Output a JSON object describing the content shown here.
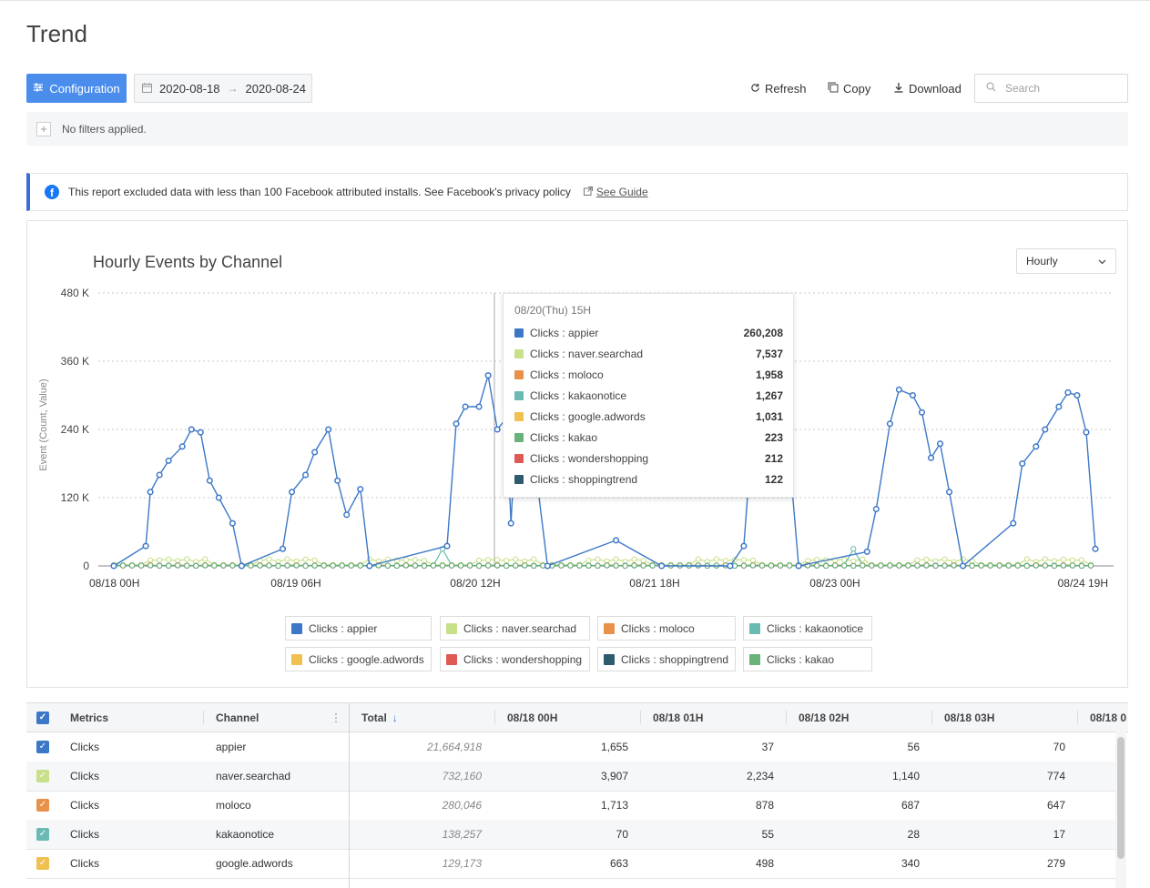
{
  "page": {
    "title": "Trend"
  },
  "toolbar": {
    "config_label": "Configuration",
    "date_start": "2020-08-18",
    "date_end": "2020-08-24",
    "refresh_label": "Refresh",
    "copy_label": "Copy",
    "download_label": "Download",
    "search_placeholder": "Search"
  },
  "filters": {
    "text": "No filters applied."
  },
  "notice": {
    "text": "This report excluded data with less than 100 Facebook attributed installs. See Facebook's privacy policy",
    "link": "See Guide",
    "accent": "#3b6fd8"
  },
  "chart_panel": {
    "title": "Hourly Events by Channel",
    "granularity": "Hourly"
  },
  "chart_data": {
    "type": "line",
    "title": "Hourly Events by Channel",
    "ylabel": "Event (Count, Value)",
    "xlabel": "",
    "ylim": [
      0,
      480000
    ],
    "yticks": [
      "0",
      "120 K",
      "240 K",
      "360 K",
      "480 K"
    ],
    "xticks": [
      "08/18 00H",
      "08/19 06H",
      "08/20 12H",
      "08/21 18H",
      "08/23 00H",
      "08/24 19H"
    ],
    "grid": true,
    "legend_position": "bottom",
    "series": [
      {
        "name": "Clicks : appier",
        "color": "#3d78c8",
        "pattern": "daily peaks of roughly 240K-330K during daytime hours, near 0 at night",
        "sample_points": [
          [
            0,
            0
          ],
          [
            7,
            35000
          ],
          [
            8,
            130000
          ],
          [
            10,
            160000
          ],
          [
            12,
            185000
          ],
          [
            15,
            210000
          ],
          [
            17,
            240000
          ],
          [
            19,
            235000
          ],
          [
            21,
            150000
          ],
          [
            23,
            120000
          ],
          [
            26,
            75000
          ],
          [
            28,
            0
          ],
          [
            37,
            30000
          ],
          [
            39,
            130000
          ],
          [
            42,
            160000
          ],
          [
            44,
            200000
          ],
          [
            47,
            240000
          ],
          [
            49,
            150000
          ],
          [
            51,
            90000
          ],
          [
            54,
            135000
          ],
          [
            56,
            0
          ],
          [
            73,
            35000
          ],
          [
            75,
            250000
          ],
          [
            77,
            280000
          ],
          [
            80,
            280000
          ],
          [
            82,
            335000
          ],
          [
            84,
            240000
          ],
          [
            86,
            260000
          ],
          [
            87,
            75000
          ],
          [
            88,
            230000
          ],
          [
            91,
            260208
          ],
          [
            95,
            0
          ],
          [
            110,
            45000
          ],
          [
            120,
            0
          ],
          [
            135,
            0
          ],
          [
            138,
            35000
          ],
          [
            140,
            250000
          ],
          [
            143,
            290000
          ],
          [
            145,
            260000
          ],
          [
            148,
            190000
          ],
          [
            150,
            0
          ],
          [
            165,
            25000
          ],
          [
            167,
            100000
          ],
          [
            170,
            250000
          ],
          [
            172,
            310000
          ],
          [
            175,
            300000
          ],
          [
            177,
            270000
          ],
          [
            179,
            190000
          ],
          [
            181,
            215000
          ],
          [
            183,
            130000
          ],
          [
            186,
            0
          ],
          [
            197,
            75000
          ],
          [
            199,
            180000
          ],
          [
            202,
            210000
          ],
          [
            204,
            240000
          ],
          [
            207,
            280000
          ],
          [
            209,
            305000
          ],
          [
            211,
            300000
          ],
          [
            213,
            235000
          ],
          [
            215,
            30000
          ]
        ]
      },
      {
        "name": "Clicks : naver.searchad",
        "color": "#c8e089",
        "pattern": "low, roughly 0-15K"
      },
      {
        "name": "Clicks : moloco",
        "color": "#e8914a",
        "pattern": "near 0"
      },
      {
        "name": "Clicks : kakaonotice",
        "color": "#6ab9b3",
        "pattern": "near 0 with small spikes up to ~35K"
      },
      {
        "name": "Clicks : google.adwords",
        "color": "#f0c050",
        "pattern": "near 0"
      },
      {
        "name": "Clicks : wondershopping",
        "color": "#e05a55",
        "pattern": "near 0"
      },
      {
        "name": "Clicks : shoppingtrend",
        "color": "#2f5b6e",
        "pattern": "near 0"
      },
      {
        "name": "Clicks : kakao",
        "color": "#69b27a",
        "pattern": "near 0"
      }
    ]
  },
  "tooltip": {
    "title": "08/20(Thu) 15H",
    "rows": [
      {
        "label": "Clicks : appier",
        "value": "260,208",
        "color": "#3d78c8"
      },
      {
        "label": "Clicks : naver.searchad",
        "value": "7,537",
        "color": "#c8e089"
      },
      {
        "label": "Clicks : moloco",
        "value": "1,958",
        "color": "#e8914a"
      },
      {
        "label": "Clicks : kakaonotice",
        "value": "1,267",
        "color": "#6ab9b3"
      },
      {
        "label": "Clicks : google.adwords",
        "value": "1,031",
        "color": "#f0c050"
      },
      {
        "label": "Clicks : kakao",
        "value": "223",
        "color": "#69b27a"
      },
      {
        "label": "Clicks : wondershopping",
        "value": "212",
        "color": "#e05a55"
      },
      {
        "label": "Clicks : shoppingtrend",
        "value": "122",
        "color": "#2f5b6e"
      }
    ]
  },
  "legend": [
    {
      "label": "Clicks : appier",
      "color": "#3d78c8"
    },
    {
      "label": "Clicks : naver.searchad",
      "color": "#c8e089"
    },
    {
      "label": "Clicks : moloco",
      "color": "#e8914a"
    },
    {
      "label": "Clicks : kakaonotice",
      "color": "#6ab9b3"
    },
    {
      "label": "Clicks : google.adwords",
      "color": "#f0c050"
    },
    {
      "label": "Clicks : wondershopping",
      "color": "#e05a55"
    },
    {
      "label": "Clicks : shoppingtrend",
      "color": "#2f5b6e"
    },
    {
      "label": "Clicks : kakao",
      "color": "#69b27a"
    }
  ],
  "table": {
    "headers": {
      "metrics": "Metrics",
      "channel": "Channel",
      "total": "Total",
      "h0": "08/18 00H",
      "h1": "08/18 01H",
      "h2": "08/18 02H",
      "h3": "08/18 03H",
      "h4": "08/18 0"
    },
    "rows": [
      {
        "color": "#3d78c8",
        "metric": "Clicks",
        "channel": "appier",
        "total": "21,664,918",
        "h0": "1,655",
        "h1": "37",
        "h2": "56",
        "h3": "70"
      },
      {
        "color": "#c8e089",
        "metric": "Clicks",
        "channel": "naver.searchad",
        "total": "732,160",
        "h0": "3,907",
        "h1": "2,234",
        "h2": "1,140",
        "h3": "774"
      },
      {
        "color": "#e8914a",
        "metric": "Clicks",
        "channel": "moloco",
        "total": "280,046",
        "h0": "1,713",
        "h1": "878",
        "h2": "687",
        "h3": "647"
      },
      {
        "color": "#6ab9b3",
        "metric": "Clicks",
        "channel": "kakaonotice",
        "total": "138,257",
        "h0": "70",
        "h1": "55",
        "h2": "28",
        "h3": "17"
      },
      {
        "color": "#f0c050",
        "metric": "Clicks",
        "channel": "google.adwords",
        "total": "129,173",
        "h0": "663",
        "h1": "498",
        "h2": "340",
        "h3": "279"
      }
    ]
  }
}
